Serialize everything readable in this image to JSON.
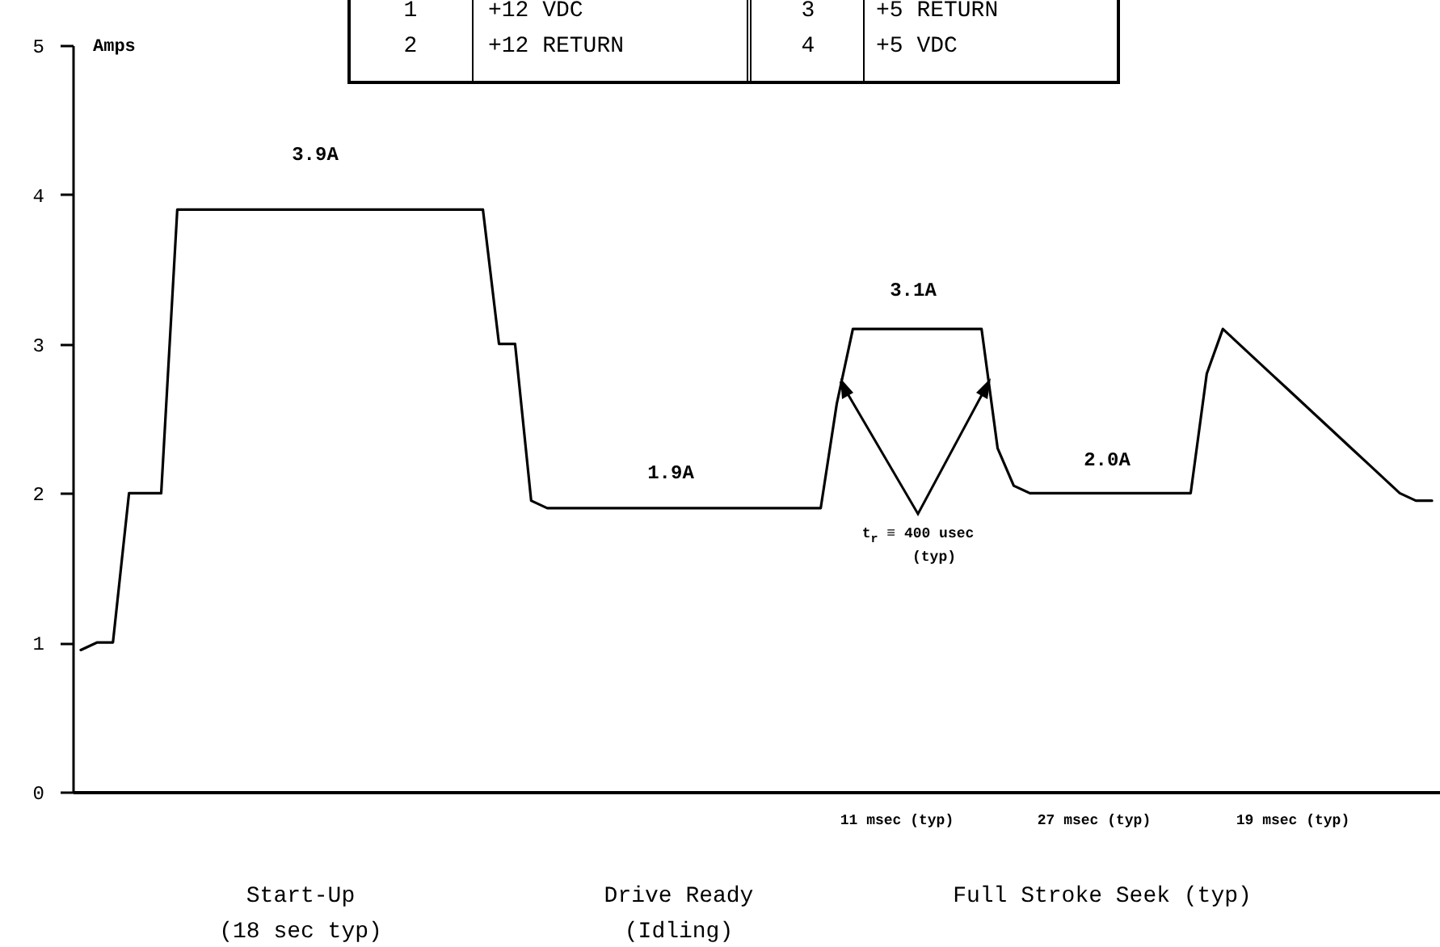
{
  "chart_data": {
    "type": "line",
    "ylabel": "Amps",
    "ylim": [
      0,
      5
    ],
    "yticks": [
      0,
      1,
      2,
      3,
      4,
      5
    ],
    "grid": false,
    "marker": "none",
    "line_style": "solid",
    "color": "#000000",
    "categories": [
      null,
      null,
      null,
      null,
      null,
      null,
      null,
      null,
      null,
      null,
      null,
      null,
      null,
      null,
      null,
      null,
      null,
      null,
      null,
      null,
      null,
      null,
      null,
      null,
      null,
      null,
      null,
      null,
      null,
      null,
      null,
      null,
      null,
      null,
      null,
      null,
      null,
      null,
      null,
      null,
      null,
      null,
      null,
      null,
      null,
      null,
      null,
      null,
      null,
      null,
      null,
      null,
      null,
      null,
      null,
      null,
      null,
      null,
      null,
      null,
      null,
      null,
      null,
      null,
      null,
      null,
      null,
      null,
      null,
      null,
      null,
      null,
      null,
      null,
      null,
      null,
      null,
      null,
      null,
      null,
      null,
      null,
      null,
      null,
      null
    ],
    "values": [
      0.95,
      1.0,
      1.0,
      2.0,
      2.0,
      2.0,
      3.9,
      3.9,
      3.9,
      3.9,
      3.9,
      3.9,
      3.9,
      3.9,
      3.9,
      3.9,
      3.9,
      3.9,
      3.9,
      3.9,
      3.9,
      3.9,
      3.9,
      3.9,
      3.9,
      3.9,
      3.0,
      3.0,
      1.95,
      1.9,
      1.9,
      1.9,
      1.9,
      1.9,
      1.9,
      1.9,
      1.9,
      1.9,
      1.9,
      1.9,
      1.9,
      1.9,
      1.9,
      1.9,
      1.9,
      1.9,
      1.9,
      2.6,
      3.1,
      3.1,
      3.1,
      3.1,
      3.1,
      3.1,
      3.1,
      3.1,
      3.1,
      2.3,
      2.05,
      2.0,
      2.0,
      2.0,
      2.0,
      2.0,
      2.0,
      2.0,
      2.0,
      2.0,
      2.0,
      2.0,
      2.8,
      3.1,
      3.0,
      2.9,
      2.8,
      2.7,
      2.6,
      2.5,
      2.4,
      2.3,
      2.2,
      2.1,
      2.0,
      1.95,
      1.95
    ],
    "annotations": [
      "3.9A",
      "1.9A",
      "3.1A",
      "2.0A",
      "t$_{r}$ ≡ 400 usec",
      "(typ)",
      "11 msec (typ)",
      "27 msec (typ)",
      "19 msec (typ)",
      "Start-Up",
      "(18 sec typ)",
      "Drive Ready",
      "(Idling)",
      "Full Stroke Seek (typ)",
      "1",
      "+12 VDC",
      "3",
      "+5 RETURN",
      "2",
      "+12 RETURN",
      "4",
      "+5 VDC"
    ]
  }
}
